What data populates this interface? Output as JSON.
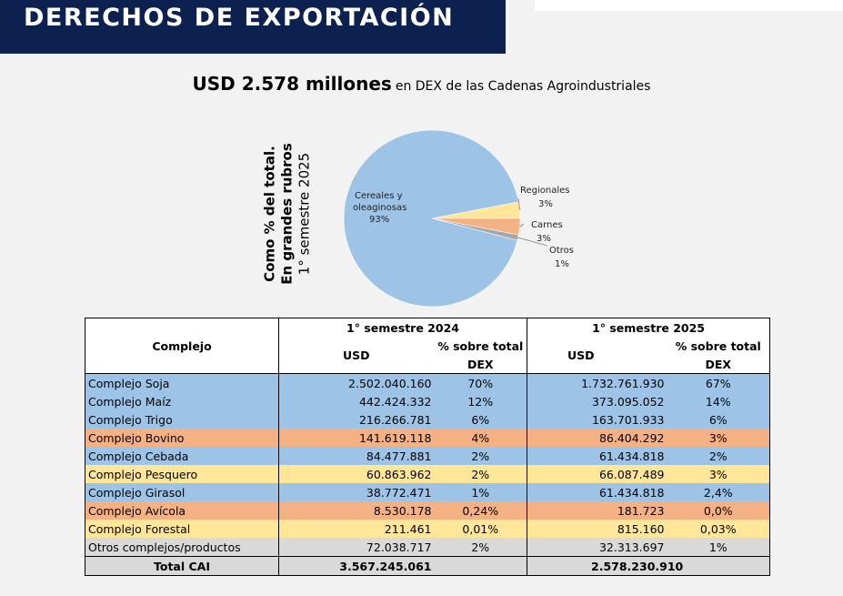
{
  "header": {
    "title": "DERECHOS DE EXPORTACIÓN"
  },
  "subtitle": {
    "amount": "USD 2.578 millones",
    "rest": "en DEX de las Cadenas Agroindustriales"
  },
  "side_label": {
    "line1": "Como % del total.",
    "line2": "En grandes rubros",
    "line3": "1° semestre 2025"
  },
  "chart_data": {
    "type": "pie",
    "slices": [
      {
        "label": "Cereales y oleaginosas",
        "value": 93,
        "pct_label": "93%",
        "color": "#9dc3e6"
      },
      {
        "label": "Regionales",
        "value": 3,
        "pct_label": "3%",
        "color": "#ffe699"
      },
      {
        "label": "Carnes",
        "value": 3,
        "pct_label": "3%",
        "color": "#f4b183"
      },
      {
        "label": "Otros",
        "value": 1,
        "pct_label": "1%",
        "color": "#a6a6a6"
      }
    ]
  },
  "table": {
    "col_complejo": "Complejo",
    "period_2024": "1° semestre 2024",
    "period_2025": "1° semestre 2025",
    "col_usd": "USD",
    "col_pct": "% sobre total",
    "col_pct2": "DEX",
    "rows": [
      {
        "name": "Complejo Soja",
        "usd2024": "2.502.040.160",
        "pct2024": "70%",
        "usd2025": "1.732.761.930",
        "pct2025": "67%",
        "color": "blue"
      },
      {
        "name": "Complejo Maíz",
        "usd2024": "442.424.332",
        "pct2024": "12%",
        "usd2025": "373.095.052",
        "pct2025": "14%",
        "color": "blue"
      },
      {
        "name": "Complejo Trigo",
        "usd2024": "216.266.781",
        "pct2024": "6%",
        "usd2025": "163.701.933",
        "pct2025": "6%",
        "color": "blue"
      },
      {
        "name": "Complejo Bovino",
        "usd2024": "141.619.118",
        "pct2024": "4%",
        "usd2025": "86.404.292",
        "pct2025": "3%",
        "color": "orange"
      },
      {
        "name": "Complejo Cebada",
        "usd2024": "84.477.881",
        "pct2024": "2%",
        "usd2025": "61.434.818",
        "pct2025": "2%",
        "color": "blue"
      },
      {
        "name": "Complejo Pesquero",
        "usd2024": "60.863.962",
        "pct2024": "2%",
        "usd2025": "66.087.489",
        "pct2025": "3%",
        "color": "yellow"
      },
      {
        "name": "Complejo Girasol",
        "usd2024": "38.772.471",
        "pct2024": "1%",
        "usd2025": "61.434.818",
        "pct2025": "2,4%",
        "color": "blue"
      },
      {
        "name": "Complejo Avícola",
        "usd2024": "8.530.178",
        "pct2024": "0,24%",
        "usd2025": "181.723",
        "pct2025": "0,0%",
        "color": "orange"
      },
      {
        "name": "Complejo Forestal",
        "usd2024": "211.461",
        "pct2024": "0,01%",
        "usd2025": "815.160",
        "pct2025": "0,03%",
        "color": "yellow"
      },
      {
        "name": "Otros complejos/productos",
        "usd2024": "72.038.717",
        "pct2024": "2%",
        "usd2025": "32.313.697",
        "pct2025": "1%",
        "color": "grey"
      }
    ],
    "total": {
      "name": "Total CAI",
      "usd2024": "3.567.245.061",
      "usd2025": "2.578.230.910"
    }
  }
}
